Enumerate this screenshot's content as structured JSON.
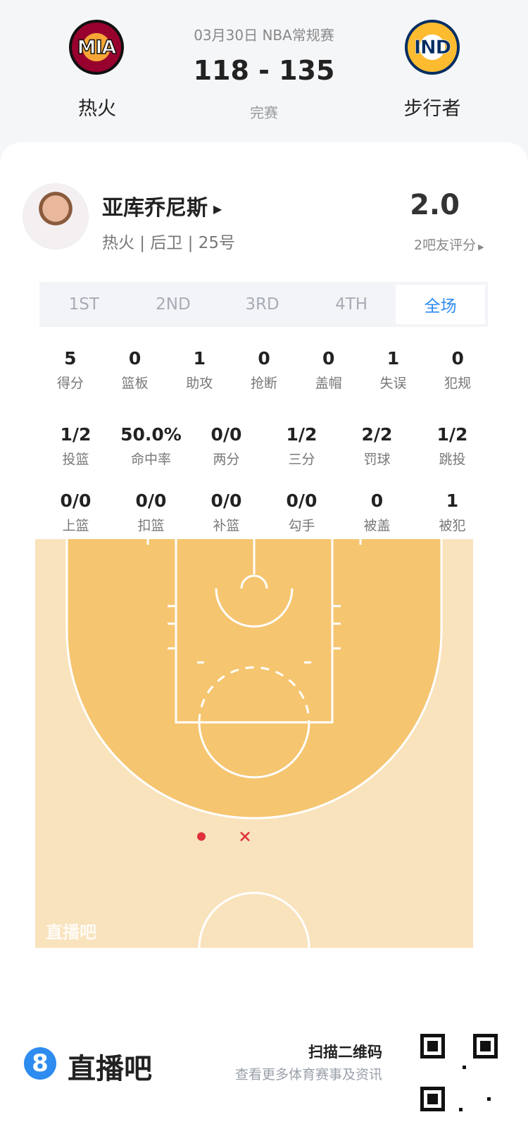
{
  "game": {
    "date_league": "03月30日 NBA常规赛",
    "score": "118 - 135",
    "status": "完赛",
    "home": {
      "abbr": "MIA",
      "name": "热火"
    },
    "away": {
      "abbr": "IND",
      "name": "步行者"
    }
  },
  "player": {
    "name": "亚库乔尼斯",
    "info": "热火 | 后卫 | 25号",
    "rating": "2.0",
    "rating_label": "2吧友评分"
  },
  "tabs": [
    {
      "label": "1ST"
    },
    {
      "label": "2ND"
    },
    {
      "label": "3RD"
    },
    {
      "label": "4TH"
    },
    {
      "label": "全场",
      "active": true
    }
  ],
  "stats_row1": [
    {
      "v": "5",
      "l": "得分"
    },
    {
      "v": "0",
      "l": "篮板"
    },
    {
      "v": "1",
      "l": "助攻"
    },
    {
      "v": "0",
      "l": "抢断"
    },
    {
      "v": "0",
      "l": "盖帽"
    },
    {
      "v": "1",
      "l": "失误"
    },
    {
      "v": "0",
      "l": "犯规"
    }
  ],
  "stats_row2": [
    {
      "v": "1/2",
      "l": "投篮"
    },
    {
      "v": "50.0%",
      "l": "命中率"
    },
    {
      "v": "0/0",
      "l": "两分"
    },
    {
      "v": "1/2",
      "l": "三分"
    },
    {
      "v": "2/2",
      "l": "罚球"
    },
    {
      "v": "1/2",
      "l": "跳投"
    }
  ],
  "stats_row3": [
    {
      "v": "0/0",
      "l": "上篮"
    },
    {
      "v": "0/0",
      "l": "扣篮"
    },
    {
      "v": "0/0",
      "l": "补篮"
    },
    {
      "v": "0/0",
      "l": "勾手"
    },
    {
      "v": "0",
      "l": "被盖"
    },
    {
      "v": "1",
      "l": "被犯"
    }
  ],
  "court": {
    "watermark": "直播吧",
    "shots": [
      {
        "result": "made",
        "marker": "dot"
      },
      {
        "result": "missed",
        "marker": "x"
      }
    ],
    "colors": {
      "made": "#e0303a",
      "missed": "#e0303a"
    }
  },
  "footer": {
    "brand": "直播吧",
    "scan": "扫描二维码",
    "sub": "查看更多体育赛事及资讯"
  },
  "colors": {
    "accent": "#2e8bef"
  }
}
